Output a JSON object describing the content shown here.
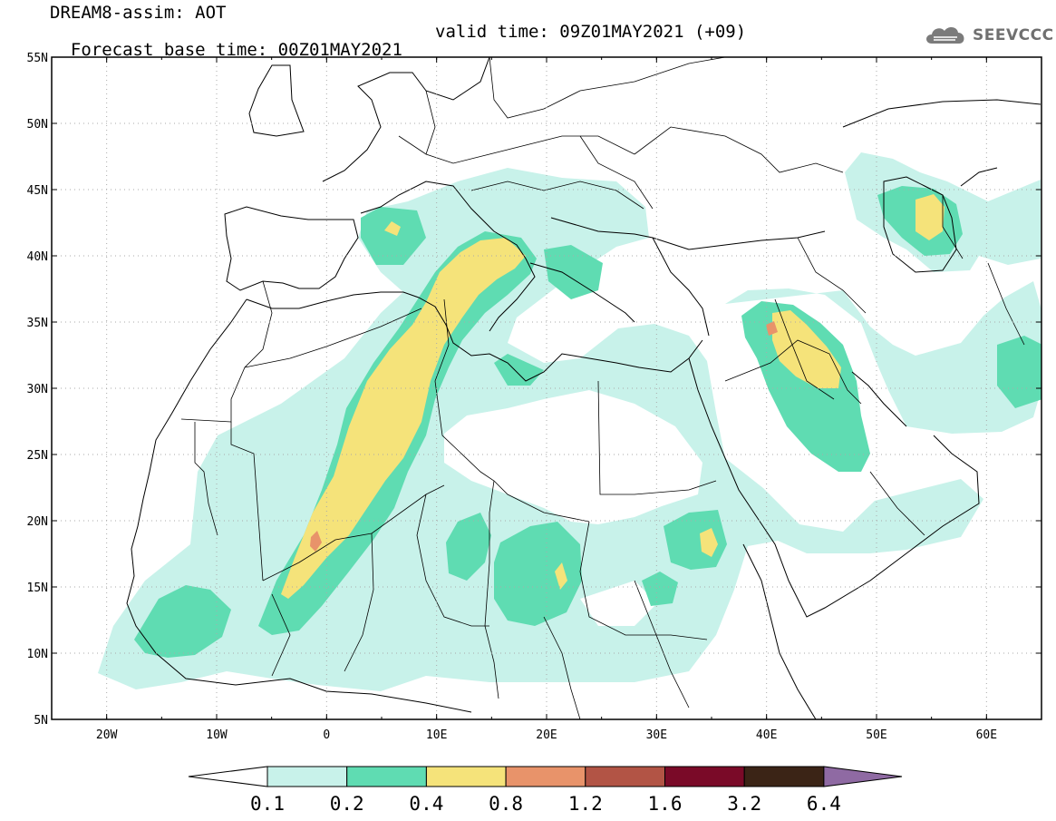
{
  "header": {
    "line1": "DREAM8-assim: AOT",
    "line2": "Forecast base time: 00Z01MAY2021",
    "valid": "valid time: 09Z01MAY2021 (+09)"
  },
  "logo": {
    "text": "SEEVCCC",
    "icon": "cloud-icon"
  },
  "map": {
    "lon_range": [
      -25,
      65
    ],
    "lat_range": [
      5,
      55
    ],
    "x_ticks": [
      "20W",
      "10W",
      "0",
      "10E",
      "20E",
      "30E",
      "40E",
      "50E",
      "60E"
    ],
    "y_ticks": [
      "55N",
      "50N",
      "45N",
      "40N",
      "35N",
      "30N",
      "25N",
      "20N",
      "15N",
      "10N",
      "5N"
    ],
    "grid": "dotted"
  },
  "colorbar": {
    "labels": [
      "0.1",
      "0.2",
      "0.4",
      "0.8",
      "1.2",
      "1.6",
      "3.2",
      "6.4"
    ],
    "colors": [
      "#ffffff",
      "#c8f2ea",
      "#5fdcb2",
      "#f5e37a",
      "#e8936a",
      "#b25445",
      "#7a0a28",
      "#3b2416",
      "#8f6aa3"
    ]
  }
}
